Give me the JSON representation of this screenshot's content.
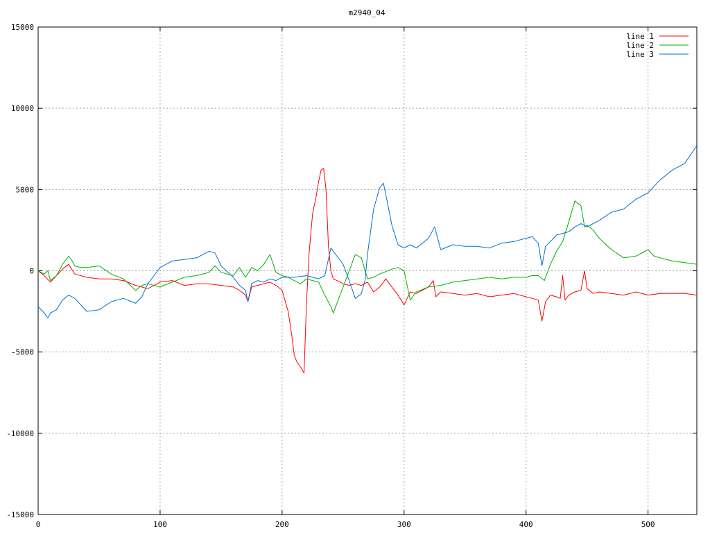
{
  "chart_data": {
    "type": "line",
    "title": "m2940_04",
    "xlim": [
      0,
      540
    ],
    "ylim": [
      -15000,
      15000
    ],
    "xticks": [
      0,
      100,
      200,
      300,
      400,
      500
    ],
    "yticks": [
      -15000,
      -10000,
      -5000,
      0,
      5000,
      10000,
      15000
    ],
    "grid": true,
    "legend_position": "top-right",
    "series": [
      {
        "name": "line 1",
        "color": "#ff0000",
        "x": [
          0,
          5,
          10,
          15,
          20,
          25,
          30,
          40,
          50,
          60,
          70,
          80,
          90,
          100,
          110,
          120,
          130,
          140,
          150,
          160,
          165,
          170,
          172,
          175,
          180,
          185,
          190,
          195,
          200,
          205,
          208,
          210,
          212,
          215,
          218,
          220,
          222,
          225,
          228,
          230,
          232,
          234,
          236,
          238,
          240,
          242,
          245,
          250,
          255,
          260,
          265,
          270,
          275,
          280,
          283,
          285,
          290,
          295,
          300,
          305,
          310,
          320,
          324,
          326,
          330,
          340,
          350,
          360,
          370,
          380,
          390,
          400,
          405,
          410,
          413,
          416,
          420,
          425,
          428,
          430,
          432,
          435,
          440,
          445,
          448,
          450,
          455,
          460,
          470,
          480,
          490,
          500,
          510,
          520,
          530,
          540
        ],
        "y": [
          0,
          -300,
          -700,
          -300,
          100,
          400,
          -200,
          -400,
          -500,
          -500,
          -600,
          -900,
          -1100,
          -700,
          -600,
          -900,
          -800,
          -800,
          -900,
          -1000,
          -1200,
          -1500,
          -1900,
          -1000,
          -900,
          -800,
          -700,
          -900,
          -1200,
          -2500,
          -4000,
          -5200,
          -5600,
          -5900,
          -6300,
          -2000,
          1000,
          3500,
          4600,
          5500,
          6200,
          6300,
          5000,
          1500,
          0,
          -500,
          -600,
          -800,
          -900,
          -800,
          -900,
          -700,
          -1300,
          -1000,
          -700,
          -500,
          -1000,
          -1500,
          -2100,
          -1300,
          -1400,
          -1000,
          -600,
          -1600,
          -1300,
          -1400,
          -1500,
          -1400,
          -1600,
          -1500,
          -1400,
          -1600,
          -1700,
          -1800,
          -3100,
          -1900,
          -1500,
          -1600,
          -1700,
          -300,
          -1800,
          -1500,
          -1300,
          -1200,
          0,
          -1100,
          -1400,
          -1300,
          -1400,
          -1500,
          -1300,
          -1500,
          -1400,
          -1400,
          -1400,
          -1500
        ]
      },
      {
        "name": "line 2",
        "color": "#00b000",
        "x": [
          0,
          5,
          8,
          10,
          15,
          20,
          25,
          28,
          30,
          35,
          40,
          50,
          60,
          70,
          80,
          85,
          90,
          100,
          110,
          120,
          130,
          140,
          145,
          150,
          160,
          165,
          170,
          175,
          180,
          185,
          190,
          195,
          200,
          205,
          210,
          215,
          220,
          225,
          230,
          235,
          240,
          242,
          245,
          250,
          255,
          260,
          265,
          270,
          275,
          280,
          290,
          295,
          300,
          305,
          310,
          320,
          330,
          340,
          350,
          360,
          370,
          380,
          390,
          400,
          405,
          410,
          415,
          420,
          425,
          430,
          435,
          440,
          445,
          448,
          450,
          455,
          460,
          470,
          480,
          490,
          500,
          505,
          510,
          520,
          530,
          540
        ],
        "y": [
          0,
          -200,
          0,
          -600,
          -300,
          400,
          900,
          600,
          300,
          200,
          200,
          300,
          -200,
          -500,
          -1200,
          -900,
          -800,
          -1000,
          -700,
          -400,
          -300,
          -100,
          300,
          -100,
          -300,
          200,
          -400,
          200,
          0,
          400,
          1000,
          -100,
          -300,
          -400,
          -600,
          -800,
          -500,
          -600,
          -700,
          -1500,
          -2200,
          -2600,
          -2000,
          -1000,
          0,
          1000,
          800,
          -500,
          -400,
          -200,
          100,
          200,
          0,
          -1800,
          -1300,
          -1000,
          -900,
          -700,
          -600,
          -500,
          -400,
          -500,
          -400,
          -400,
          -300,
          -300,
          -600,
          400,
          1200,
          1800,
          3000,
          4300,
          4000,
          2700,
          2800,
          2500,
          2000,
          1300,
          800,
          900,
          1300,
          900,
          800,
          600,
          500,
          400
        ]
      },
      {
        "name": "line 3",
        "color": "#0070d0",
        "x": [
          0,
          5,
          8,
          10,
          15,
          20,
          25,
          30,
          40,
          50,
          60,
          70,
          80,
          85,
          90,
          95,
          100,
          110,
          120,
          130,
          140,
          145,
          150,
          160,
          165,
          170,
          172,
          175,
          180,
          185,
          190,
          195,
          200,
          210,
          220,
          225,
          230,
          235,
          240,
          245,
          250,
          255,
          260,
          265,
          268,
          270,
          275,
          280,
          283,
          285,
          290,
          295,
          300,
          305,
          310,
          320,
          325,
          330,
          340,
          350,
          360,
          370,
          380,
          390,
          400,
          405,
          410,
          413,
          416,
          420,
          425,
          430,
          435,
          440,
          445,
          450,
          455,
          460,
          470,
          480,
          490,
          500,
          510,
          520,
          530,
          540
        ],
        "y": [
          -2200,
          -2600,
          -2900,
          -2600,
          -2400,
          -1800,
          -1500,
          -1700,
          -2500,
          -2400,
          -1900,
          -1700,
          -2000,
          -1600,
          -800,
          -300,
          200,
          600,
          700,
          800,
          1200,
          1100,
          300,
          -400,
          -900,
          -1200,
          -1900,
          -800,
          -600,
          -700,
          -500,
          -600,
          -400,
          -400,
          -300,
          -400,
          -500,
          -300,
          1400,
          900,
          400,
          -600,
          -1700,
          -1400,
          -600,
          1000,
          3800,
          5100,
          5400,
          4700,
          2800,
          1600,
          1400,
          1600,
          1400,
          2000,
          2700,
          1300,
          1600,
          1500,
          1500,
          1400,
          1700,
          1800,
          2000,
          2100,
          1700,
          300,
          1500,
          1800,
          2200,
          2300,
          2400,
          2700,
          2900,
          2700,
          2900,
          3100,
          3600,
          3800,
          4400,
          4800,
          5600,
          6200,
          6600,
          7700
        ]
      }
    ]
  }
}
